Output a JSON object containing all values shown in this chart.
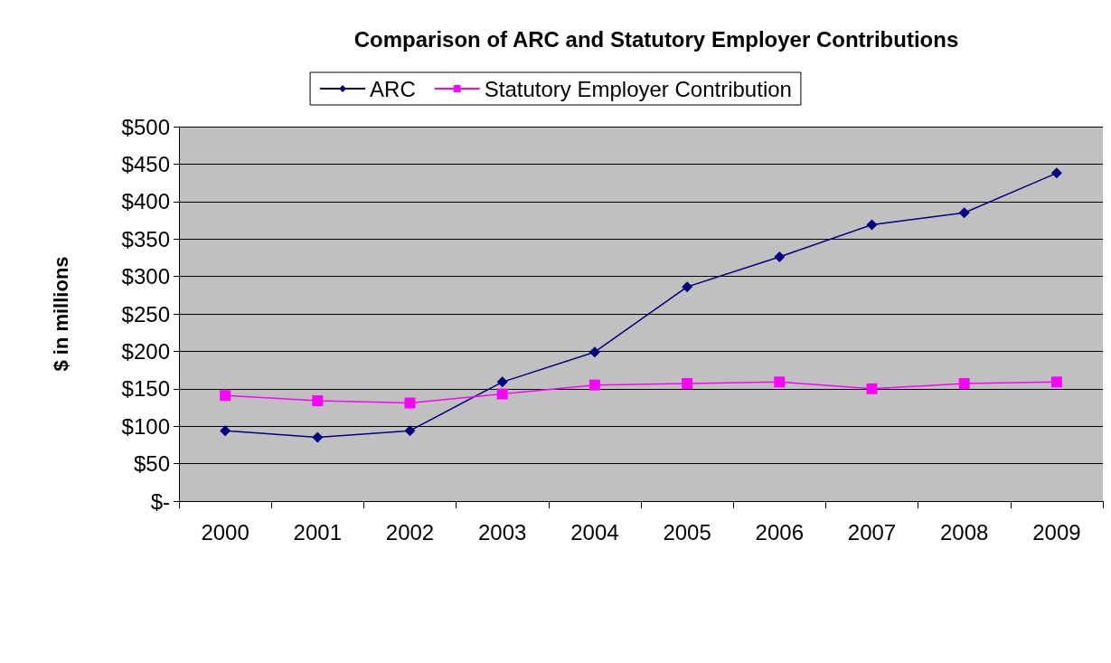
{
  "chart_data": {
    "type": "line",
    "title": "Comparison of ARC and Statutory Employer Contributions",
    "ylabel": "$ in millions",
    "categories": [
      "2000",
      "2001",
      "2002",
      "2003",
      "2004",
      "2005",
      "2006",
      "2007",
      "2008",
      "2009"
    ],
    "series": [
      {
        "name": "ARC",
        "color": "#000080",
        "marker": "diamond",
        "values": [
          94,
          85,
          94,
          159,
          199,
          286,
          326,
          369,
          385,
          438
        ]
      },
      {
        "name": "Statutory Employer Contribution",
        "color": "#ff00ff",
        "marker": "square",
        "values": [
          141,
          134,
          131,
          143,
          155,
          157,
          159,
          150,
          157,
          159
        ]
      }
    ],
    "ylim": [
      0,
      500
    ],
    "yticks": [
      {
        "value": 0,
        "label": "$-"
      },
      {
        "value": 50,
        "label": "$50"
      },
      {
        "value": 100,
        "label": "$100"
      },
      {
        "value": 150,
        "label": "$150"
      },
      {
        "value": 200,
        "label": "$200"
      },
      {
        "value": 250,
        "label": "$250"
      },
      {
        "value": 300,
        "label": "$300"
      },
      {
        "value": 350,
        "label": "$350"
      },
      {
        "value": 400,
        "label": "$400"
      },
      {
        "value": 450,
        "label": "$450"
      },
      {
        "value": 500,
        "label": "$500"
      }
    ],
    "grid": "y",
    "legend": "top",
    "line_style": "solid"
  }
}
